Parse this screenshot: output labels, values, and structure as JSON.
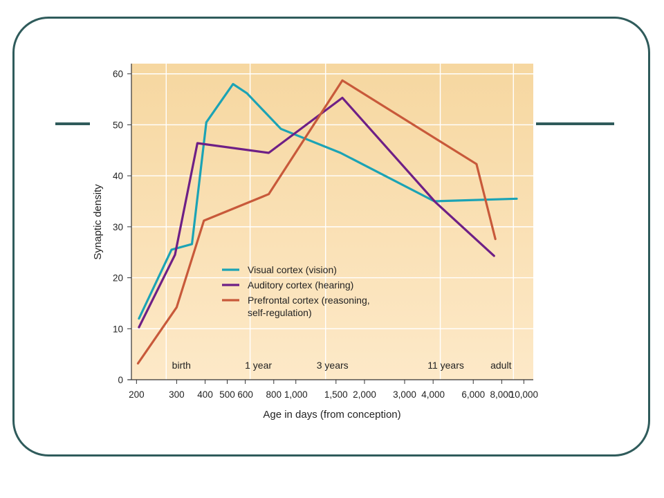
{
  "chart_data": {
    "type": "line",
    "xlabel": "Age in days (from conception)",
    "ylabel": "Synaptic density",
    "x_scale": "log",
    "xlim": [
      190,
      11000
    ],
    "ylim": [
      0,
      62
    ],
    "x_ticks": [
      200,
      300,
      400,
      500,
      600,
      800,
      1000,
      1500,
      2000,
      3000,
      4000,
      6000,
      8000,
      10000
    ],
    "x_tick_labels": [
      "200",
      "300",
      "400",
      "500",
      "600",
      "800",
      "1,000",
      "1,500",
      "2,000",
      "3,000",
      "4,000",
      "6,000",
      "8,000",
      "10,000"
    ],
    "y_ticks": [
      0,
      10,
      20,
      30,
      40,
      50,
      60
    ],
    "y_tick_labels": [
      "0",
      "10",
      "20",
      "30",
      "40",
      "50",
      "60"
    ],
    "milestones": [
      {
        "label": "birth",
        "x": 270
      },
      {
        "label": "1 year",
        "x": 630
      },
      {
        "label": "3 years",
        "x": 1350
      },
      {
        "label": "11 years",
        "x": 4300
      },
      {
        "label": "adult",
        "x": 9000
      }
    ],
    "grid": true,
    "legend_position": "center-left",
    "series": [
      {
        "name": "Visual cortex (vision)",
        "color": "#1ba3b5",
        "x": [
          205,
          285,
          350,
          405,
          530,
          610,
          860,
          1570,
          4050,
          9300
        ],
        "y": [
          12,
          25.5,
          26.6,
          50.5,
          58,
          56.2,
          49.2,
          44.5,
          35,
          35.5
        ]
      },
      {
        "name": "Auditory cortex (hearing)",
        "color": "#6e1f86",
        "x": [
          205,
          295,
          370,
          760,
          1600,
          4100,
          7400
        ],
        "y": [
          10.3,
          24.5,
          46.4,
          44.5,
          55.3,
          34.8,
          24.3
        ]
      },
      {
        "name": "Prefrontal cortex (reasoning, self-regulation)",
        "name_lines": [
          "Prefrontal cortex (reasoning,",
          "self-regulation)"
        ],
        "color": "#c8593a",
        "x": [
          203,
          300,
          395,
          760,
          1600,
          6200,
          7500
        ],
        "y": [
          3.2,
          14.2,
          31.2,
          36.4,
          58.7,
          42.3,
          27.6
        ]
      }
    ]
  }
}
